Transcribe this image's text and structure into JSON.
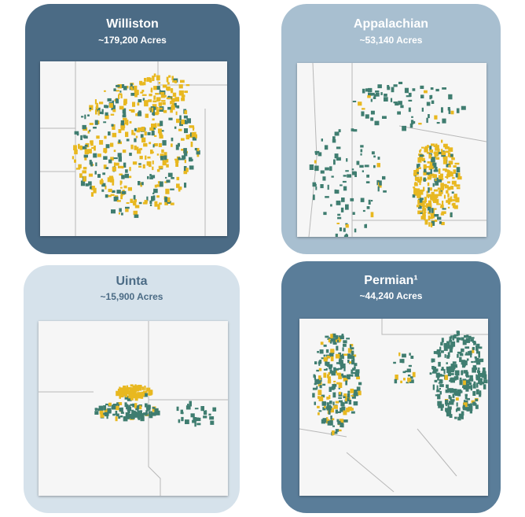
{
  "cards": [
    {
      "title": "Williston",
      "subtitle": "~179,200 Acres"
    },
    {
      "title": "Appalachian",
      "subtitle": "~53,140 Acres"
    },
    {
      "title": "Uinta",
      "subtitle": "~15,900 Acres"
    },
    {
      "title": "Permian¹",
      "subtitle": "~44,240 Acres"
    }
  ]
}
